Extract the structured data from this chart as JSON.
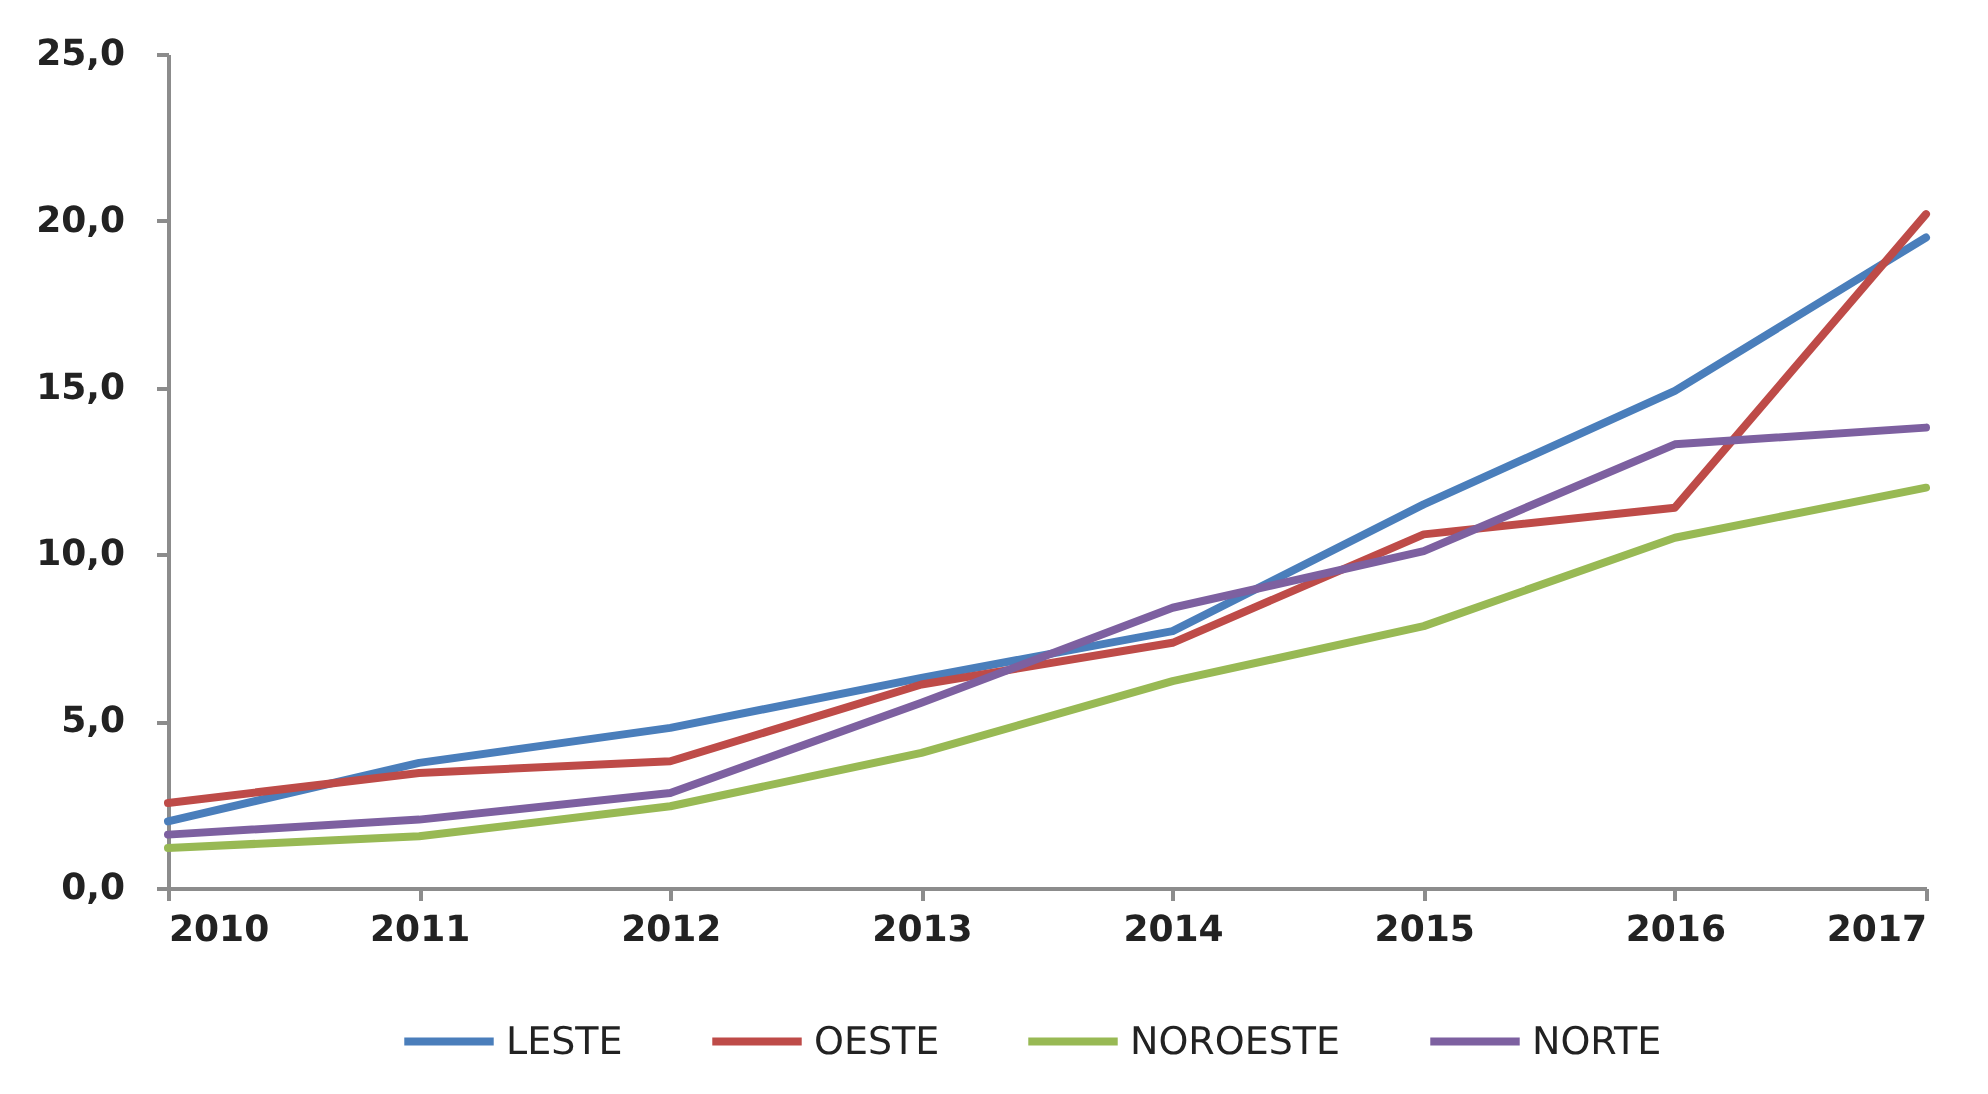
{
  "chart_data": {
    "type": "line",
    "x": [
      2010,
      2011,
      2012,
      2013,
      2014,
      2015,
      2016,
      2017
    ],
    "series": [
      {
        "name": "LESTE",
        "color": "#4a7ebb",
        "values": [
          2.0,
          3.75,
          4.8,
          6.3,
          7.7,
          11.5,
          14.9,
          19.5
        ]
      },
      {
        "name": "OESTE",
        "color": "#be4b48",
        "values": [
          2.55,
          3.45,
          3.8,
          6.1,
          7.35,
          10.6,
          11.4,
          20.2
        ]
      },
      {
        "name": "NOROESTE",
        "color": "#98b954",
        "values": [
          1.2,
          1.55,
          2.45,
          4.05,
          6.2,
          7.85,
          10.5,
          12.0
        ]
      },
      {
        "name": "NORTE",
        "color": "#7d60a0",
        "values": [
          1.6,
          2.05,
          2.85,
          5.55,
          8.4,
          10.1,
          13.3,
          13.8
        ]
      }
    ],
    "xlim": [
      2010,
      2017
    ],
    "xticks": [
      2010,
      2011,
      2012,
      2013,
      2014,
      2015,
      2016,
      2017
    ],
    "ylim": [
      0,
      25
    ],
    "yticks": [
      {
        "value": 0,
        "label": "0,0"
      },
      {
        "value": 5,
        "label": "5,0"
      },
      {
        "value": 10,
        "label": "10,0"
      },
      {
        "value": 15,
        "label": "15,0"
      },
      {
        "value": 20,
        "label": "20,0"
      },
      {
        "value": 25,
        "label": "25,0"
      }
    ],
    "legend": "bottom",
    "line_style": "solid"
  }
}
